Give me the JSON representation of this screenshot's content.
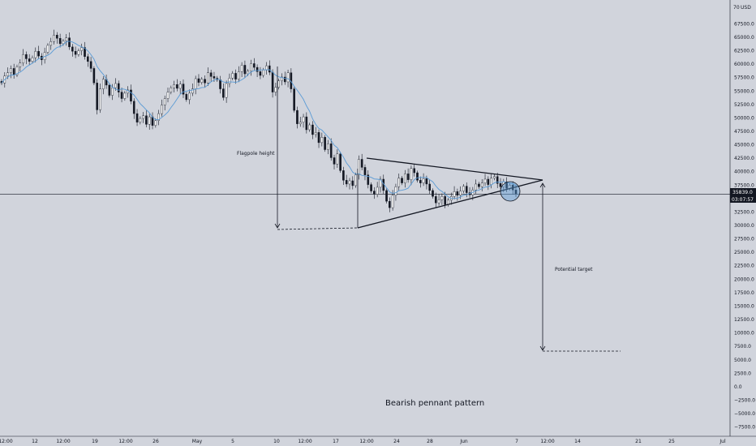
{
  "chart_data": {
    "type": "candlestick",
    "title": "Bearish pennant pattern",
    "currency": "USD",
    "ylim": [
      -8500,
      70000
    ],
    "y_ticks": [
      67500,
      65000,
      62500,
      60000,
      57500,
      55000,
      52500,
      50000,
      47500,
      45000,
      42500,
      40000,
      37500,
      32500,
      30000,
      27500,
      25000,
      22500,
      20000,
      17500,
      15000,
      12500,
      10000,
      7500,
      5000,
      2500,
      0,
      -2500,
      -5000,
      -7500
    ],
    "y_tick_labels": [
      "67500.0",
      "65000.0",
      "62500.0",
      "60000.0",
      "57500.0",
      "55000.0",
      "52500.0",
      "50000.0",
      "47500.0",
      "45000.0",
      "42500.0",
      "40000.0",
      "37500.0",
      "32500.0",
      "30000.0",
      "27500.0",
      "25000.0",
      "22500.0",
      "20000.0",
      "17500.0",
      "15000.0",
      "12500.0",
      "10000.0",
      "7500.0",
      "5000.0",
      "2500.0",
      "0.0",
      "−2500.0",
      "−5000.0",
      "−7500.0"
    ],
    "top_label": "70",
    "x_labels": [
      "12:00",
      "12",
      "12:00",
      "19",
      "12:00",
      "26",
      "May",
      "5",
      "10",
      "12:00",
      "17",
      "12:00",
      "24",
      "28",
      "Jun",
      "7",
      "12:00",
      "14",
      "21",
      "25",
      "Jul"
    ],
    "last_price": "35839.0",
    "countdown": "03:07:57",
    "annotations": {
      "flagpole": "Flagpole height",
      "target": "Potential target"
    },
    "ma_color": "#5b9bd5",
    "line_color": "#131722",
    "candle_up": "#ffffff",
    "candle_down": "#131722",
    "price_line_level": 35839,
    "closes": [
      56500,
      57800,
      58400,
      59200,
      58000,
      59500,
      60200,
      61800,
      61000,
      60500,
      61200,
      62400,
      61500,
      60800,
      62200,
      63500,
      64200,
      65400,
      64800,
      63800,
      64300,
      64900,
      63200,
      62400,
      61800,
      62500,
      63100,
      61400,
      60500,
      59200,
      56500,
      51500,
      55400,
      57200,
      56100,
      54200,
      55600,
      56400,
      54800,
      53600,
      54600,
      55200,
      53100,
      50800,
      49200,
      49900,
      50400,
      48800,
      50200,
      48600,
      49500,
      50800,
      52400,
      53600,
      54800,
      55600,
      56200,
      55500,
      56300,
      54400,
      53400,
      54600,
      55400,
      57300,
      56600,
      57200,
      56500,
      58400,
      57700,
      57400,
      57100,
      55400,
      53800,
      56400,
      57400,
      58300,
      57200,
      58600,
      59800,
      58200,
      58700,
      60100,
      59400,
      58600,
      57900,
      58900,
      59700,
      58500,
      54800,
      55700,
      56900,
      57600,
      56700,
      58400,
      55400,
      51400,
      48900,
      49200,
      50200,
      47800,
      48700,
      46900,
      47300,
      45400,
      46400,
      44100,
      45200,
      42600,
      41400,
      43300,
      40200,
      38400,
      37700,
      38300,
      37400,
      39400,
      42300,
      40800,
      39400,
      37600,
      36400,
      35800,
      37100,
      38600,
      36500,
      34500,
      33300,
      35600,
      37200,
      38800,
      37900,
      39600,
      38500,
      40600,
      39800,
      38400,
      37900,
      38700,
      37700,
      36500,
      35400,
      34200,
      34800,
      35400,
      33900,
      34700,
      35400,
      36300,
      35600,
      36400,
      37300,
      36100,
      35700,
      36600,
      37700,
      37200,
      37900,
      38600,
      37600,
      38800,
      39100,
      37800,
      37200,
      38100,
      36900,
      37500,
      36600,
      35839
    ]
  }
}
